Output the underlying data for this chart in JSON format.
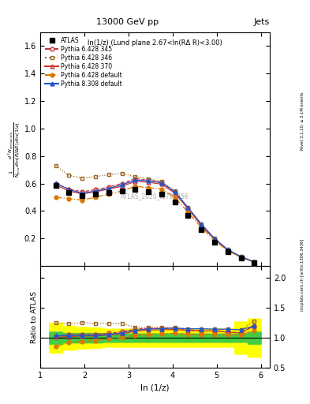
{
  "title": "13000 GeV pp",
  "title_right": "Jets",
  "panel_label": "ln(1/z) (Lund plane 2.67<ln(RΔ R)<3.00)",
  "watermark": "ATLAS_2020_I1790256",
  "right_label_top": "Rivet 3.1.10, ≥ 3.1M events",
  "right_label_bottom": "mcplots.cern.ch [arXiv:1306.3436]",
  "ylabel_main": "$\\frac{1}{N_{jets}}\\frac{d^2 N_{emissions}}{d\\ln(R/\\Delta R)\\,d\\ln(1/z)}$",
  "ylabel_ratio": "Ratio to ATLAS",
  "xlabel": "ln (1/z)",
  "xlim": [
    1.0,
    6.2
  ],
  "ylim_main": [
    0.0,
    1.7
  ],
  "ylim_ratio": [
    0.5,
    2.2
  ],
  "yticks_main": [
    0.2,
    0.4,
    0.6,
    0.8,
    1.0,
    1.2,
    1.4,
    1.6
  ],
  "yticks_ratio": [
    0.5,
    1.0,
    1.5,
    2.0
  ],
  "xticks": [
    1,
    2,
    3,
    4,
    5,
    6
  ],
  "atlas_x": [
    1.35,
    1.65,
    1.95,
    2.25,
    2.55,
    2.85,
    3.15,
    3.45,
    3.75,
    4.05,
    4.35,
    4.65,
    4.95,
    5.25,
    5.55,
    5.85
  ],
  "atlas_y": [
    0.585,
    0.535,
    0.51,
    0.525,
    0.535,
    0.545,
    0.555,
    0.54,
    0.525,
    0.465,
    0.37,
    0.265,
    0.175,
    0.105,
    0.06,
    0.025
  ],
  "atlas_yerr": [
    0.008,
    0.007,
    0.007,
    0.007,
    0.007,
    0.007,
    0.007,
    0.007,
    0.007,
    0.007,
    0.006,
    0.005,
    0.004,
    0.003,
    0.002,
    0.001
  ],
  "py6_345_y": [
    0.6,
    0.56,
    0.54,
    0.555,
    0.575,
    0.6,
    0.635,
    0.625,
    0.61,
    0.54,
    0.42,
    0.295,
    0.195,
    0.115,
    0.065,
    0.03
  ],
  "py6_346_y": [
    0.73,
    0.66,
    0.64,
    0.65,
    0.665,
    0.675,
    0.65,
    0.635,
    0.615,
    0.545,
    0.425,
    0.305,
    0.2,
    0.12,
    0.068,
    0.032
  ],
  "py6_370_y": [
    0.59,
    0.545,
    0.525,
    0.54,
    0.56,
    0.58,
    0.615,
    0.61,
    0.595,
    0.53,
    0.415,
    0.295,
    0.195,
    0.115,
    0.065,
    0.03
  ],
  "py6_def_y": [
    0.5,
    0.49,
    0.48,
    0.5,
    0.525,
    0.545,
    0.58,
    0.57,
    0.56,
    0.5,
    0.39,
    0.28,
    0.185,
    0.11,
    0.063,
    0.028
  ],
  "py8_def_y": [
    0.605,
    0.555,
    0.53,
    0.545,
    0.565,
    0.59,
    0.625,
    0.62,
    0.605,
    0.54,
    0.425,
    0.305,
    0.2,
    0.12,
    0.068,
    0.03
  ],
  "ratio_py6_345_y": [
    1.025,
    1.047,
    1.059,
    1.057,
    1.075,
    1.101,
    1.144,
    1.157,
    1.162,
    1.161,
    1.135,
    1.113,
    1.114,
    1.095,
    1.083,
    1.2
  ],
  "ratio_py6_346_y": [
    1.248,
    1.234,
    1.255,
    1.238,
    1.243,
    1.239,
    1.171,
    1.176,
    1.171,
    1.172,
    1.149,
    1.151,
    1.143,
    1.143,
    1.133,
    1.28
  ],
  "ratio_py6_370_y": [
    1.009,
    1.019,
    1.029,
    1.029,
    1.047,
    1.064,
    1.108,
    1.13,
    1.133,
    1.14,
    1.122,
    1.113,
    1.114,
    1.095,
    1.083,
    1.2
  ],
  "ratio_py6_def_y": [
    0.855,
    0.916,
    0.941,
    0.952,
    0.981,
    1.0,
    1.045,
    1.056,
    1.067,
    1.075,
    1.054,
    1.057,
    1.057,
    1.048,
    1.05,
    1.12
  ],
  "ratio_py8_def_y": [
    1.034,
    1.037,
    1.039,
    1.038,
    1.056,
    1.083,
    1.126,
    1.148,
    1.152,
    1.161,
    1.149,
    1.151,
    1.143,
    1.143,
    1.133,
    1.2
  ],
  "sys_band_yellow_lo": [
    0.75,
    0.8,
    0.82,
    0.83,
    0.85,
    0.85,
    0.85,
    0.85,
    0.85,
    0.85,
    0.85,
    0.85,
    0.85,
    0.85,
    0.73,
    0.68
  ],
  "sys_band_yellow_hi": [
    1.25,
    1.2,
    1.18,
    1.17,
    1.15,
    1.15,
    1.15,
    1.15,
    1.15,
    1.15,
    1.15,
    1.15,
    1.15,
    1.15,
    1.27,
    1.32
  ],
  "sys_band_green_lo": [
    0.9,
    0.92,
    0.92,
    0.92,
    0.93,
    0.93,
    0.93,
    0.93,
    0.93,
    0.93,
    0.93,
    0.93,
    0.93,
    0.93,
    0.93,
    0.9
  ],
  "sys_band_green_hi": [
    1.1,
    1.08,
    1.08,
    1.08,
    1.07,
    1.07,
    1.07,
    1.07,
    1.07,
    1.07,
    1.07,
    1.07,
    1.07,
    1.07,
    1.07,
    1.1
  ],
  "color_py6_345": "#cc3333",
  "color_py6_346": "#996622",
  "color_py6_370": "#cc3333",
  "color_py6_def": "#dd7700",
  "color_py8_def": "#2255cc"
}
